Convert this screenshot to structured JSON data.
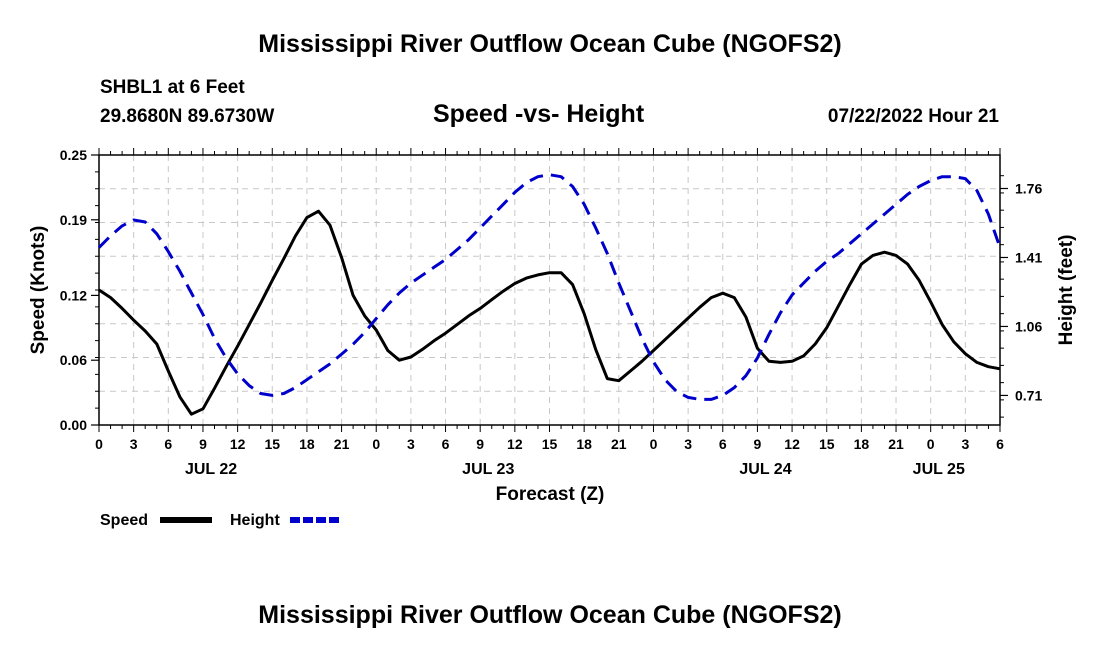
{
  "page": {
    "title_top": "Mississippi River Outflow Ocean Cube (NGOFS2)",
    "title_bottom": "Mississippi River Outflow Ocean Cube (NGOFS2)",
    "station": "SHBL1 at 6 Feet",
    "coords": "29.8680N  89.6730W",
    "datetime": "07/22/2022 Hour 21"
  },
  "chart_data": {
    "type": "line",
    "title": "Speed -vs- Height",
    "xlabel": "Forecast (Z)",
    "ylabel": "Speed (Knots)",
    "y2label": "Height (feet)",
    "xlim": [
      0,
      78
    ],
    "ylim": [
      0,
      0.25
    ],
    "y2lim": [
      0.56,
      1.93
    ],
    "x_tick_labels": [
      "0",
      "3",
      "6",
      "9",
      "12",
      "15",
      "18",
      "21",
      "0",
      "3",
      "6",
      "9",
      "12",
      "15",
      "18",
      "21",
      "0",
      "3",
      "6",
      "9",
      "12",
      "15",
      "18",
      "21",
      "0",
      "3",
      "6"
    ],
    "yticks": [
      0.0,
      0.06,
      0.12,
      0.19,
      0.25
    ],
    "ytick_labels": [
      "0.00",
      "0.06",
      "0.12",
      "0.19",
      "0.25"
    ],
    "y2ticks": [
      0.71,
      1.06,
      1.41,
      1.76
    ],
    "y2tick_labels": [
      "0.71",
      "1.06",
      "1.41",
      "1.76"
    ],
    "date_labels": [
      {
        "label": "JUL 22",
        "x": 9.7
      },
      {
        "label": "JUL 23",
        "x": 33.7
      },
      {
        "label": "JUL 24",
        "x": 57.7
      },
      {
        "label": "JUL 25",
        "x": 72.7
      }
    ],
    "x": [
      0,
      1,
      2,
      3,
      4,
      5,
      6,
      7,
      8,
      9,
      10,
      11,
      12,
      13,
      14,
      15,
      16,
      17,
      18,
      19,
      20,
      21,
      22,
      23,
      24,
      25,
      26,
      27,
      28,
      29,
      30,
      31,
      32,
      33,
      34,
      35,
      36,
      37,
      38,
      39,
      40,
      41,
      42,
      43,
      44,
      45,
      46,
      47,
      48,
      49,
      50,
      51,
      52,
      53,
      54,
      55,
      56,
      57,
      58,
      59,
      60,
      61,
      62,
      63,
      64,
      65,
      66,
      67,
      68,
      69,
      70,
      71,
      72,
      73,
      74,
      75,
      76,
      77,
      78
    ],
    "series": [
      {
        "name": "Speed",
        "axis": "left",
        "color": "#000000",
        "dash": "solid",
        "values": [
          0.125,
          0.118,
          0.108,
          0.097,
          0.087,
          0.075,
          0.05,
          0.026,
          0.01,
          0.015,
          0.034,
          0.054,
          0.073,
          0.093,
          0.113,
          0.134,
          0.154,
          0.175,
          0.192,
          0.198,
          0.185,
          0.155,
          0.12,
          0.101,
          0.088,
          0.069,
          0.06,
          0.063,
          0.07,
          0.078,
          0.085,
          0.093,
          0.101,
          0.108,
          0.116,
          0.124,
          0.131,
          0.136,
          0.139,
          0.141,
          0.141,
          0.13,
          0.103,
          0.07,
          0.043,
          0.041,
          0.05,
          0.059,
          0.069,
          0.079,
          0.089,
          0.099,
          0.109,
          0.118,
          0.122,
          0.118,
          0.1,
          0.071,
          0.059,
          0.058,
          0.059,
          0.064,
          0.075,
          0.09,
          0.11,
          0.13,
          0.149,
          0.157,
          0.16,
          0.157,
          0.149,
          0.134,
          0.114,
          0.093,
          0.077,
          0.066,
          0.058,
          0.054,
          0.052
        ]
      },
      {
        "name": "Height",
        "axis": "right",
        "color": "#0000cc",
        "dash": "dashed",
        "values": [
          1.46,
          1.52,
          1.57,
          1.6,
          1.59,
          1.53,
          1.44,
          1.34,
          1.23,
          1.12,
          1.0,
          0.9,
          0.82,
          0.76,
          0.72,
          0.71,
          0.72,
          0.75,
          0.79,
          0.83,
          0.87,
          0.92,
          0.97,
          1.03,
          1.1,
          1.17,
          1.23,
          1.28,
          1.32,
          1.36,
          1.4,
          1.45,
          1.5,
          1.56,
          1.62,
          1.68,
          1.74,
          1.79,
          1.82,
          1.83,
          1.82,
          1.77,
          1.68,
          1.56,
          1.43,
          1.28,
          1.14,
          1.0,
          0.88,
          0.79,
          0.73,
          0.7,
          0.69,
          0.69,
          0.71,
          0.75,
          0.81,
          0.9,
          1.02,
          1.13,
          1.22,
          1.28,
          1.34,
          1.39,
          1.43,
          1.48,
          1.53,
          1.58,
          1.63,
          1.68,
          1.73,
          1.77,
          1.8,
          1.82,
          1.82,
          1.81,
          1.75,
          1.63,
          1.46
        ]
      }
    ],
    "legend": [
      {
        "label": "Speed",
        "color": "#000000",
        "dash": "solid"
      },
      {
        "label": "Height",
        "color": "#0000cc",
        "dash": "dashed"
      }
    ]
  }
}
